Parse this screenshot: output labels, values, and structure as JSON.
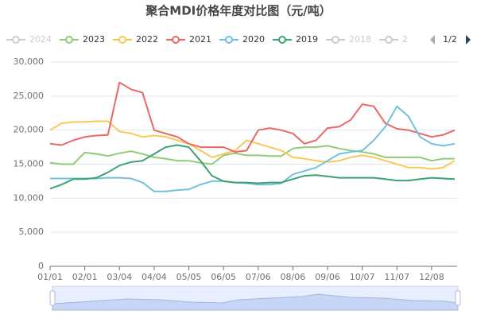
{
  "chart_data": {
    "type": "line",
    "title": "聚合MDI价格年度对比图（元/吨）",
    "categories": [
      "01/01",
      null,
      null,
      "02/01",
      null,
      null,
      "03/04",
      null,
      null,
      "04/04",
      null,
      null,
      "05/05",
      null,
      null,
      "06/05",
      null,
      null,
      "07/06",
      null,
      null,
      "08/06",
      null,
      null,
      "09/06",
      null,
      null,
      "10/07",
      null,
      null,
      "11/07",
      null,
      null,
      "12/08",
      null,
      null
    ],
    "ylim": [
      0,
      30000
    ],
    "yticks": [
      0,
      {
        "value": 5000,
        "label": "5,000"
      },
      {
        "value": 10000,
        "label": "10,000"
      },
      {
        "value": 15000,
        "label": "15,000"
      },
      {
        "value": 20000,
        "label": "20,000"
      },
      {
        "value": 25000,
        "label": "25,000"
      },
      {
        "value": 30000,
        "label": "30,000"
      }
    ],
    "grid": true,
    "legend_hidden": [
      "2024",
      "2018",
      "2"
    ],
    "legend_page": "1/2",
    "series": [
      {
        "name": "2023",
        "color": "#91cc75",
        "values": [
          15200,
          15000,
          15000,
          16700,
          16500,
          16200,
          16600,
          16900,
          16500,
          16000,
          15800,
          15500,
          15500,
          15200,
          15000,
          16300,
          16600,
          16300,
          16300,
          16200,
          16200,
          17300,
          17500,
          17500,
          17700,
          17300,
          17000,
          16800,
          16500,
          16000,
          16000,
          16000,
          16000,
          15500,
          15800,
          15800
        ]
      },
      {
        "name": "2022",
        "color": "#fac858",
        "values": [
          20000,
          21000,
          21200,
          21200,
          21300,
          21300,
          19800,
          19500,
          19000,
          19200,
          19000,
          18500,
          18000,
          17000,
          16000,
          16500,
          17000,
          18500,
          18000,
          17500,
          17000,
          16000,
          15800,
          15500,
          15300,
          15500,
          16000,
          16300,
          16000,
          15500,
          15000,
          14500,
          14500,
          14300,
          14500,
          15500
        ]
      },
      {
        "name": "2021",
        "color": "#ee6666",
        "values": [
          18000,
          17800,
          18500,
          19000,
          19200,
          19300,
          27000,
          26000,
          25500,
          20000,
          19500,
          19000,
          18000,
          17500,
          17500,
          17500,
          16800,
          17000,
          20000,
          20300,
          20000,
          19500,
          18000,
          18500,
          20300,
          20500,
          21500,
          23800,
          23500,
          21000,
          20200,
          20000,
          19500,
          19000,
          19300,
          20000
        ]
      },
      {
        "name": "2020",
        "color": "#73c0de",
        "values": [
          12900,
          12900,
          12900,
          12900,
          12900,
          13000,
          13000,
          12900,
          12300,
          11000,
          11000,
          11200,
          11300,
          12000,
          12500,
          12500,
          12300,
          12200,
          12000,
          12000,
          12200,
          13500,
          14000,
          14500,
          15500,
          16500,
          16800,
          17000,
          18500,
          20500,
          23500,
          22000,
          19000,
          18000,
          17700,
          18000
        ]
      },
      {
        "name": "2019",
        "color": "#3ba272",
        "values": [
          11400,
          12000,
          12800,
          12800,
          13000,
          13800,
          14800,
          15300,
          15500,
          16500,
          17500,
          17800,
          17500,
          15500,
          13300,
          12500,
          12300,
          12300,
          12200,
          12300,
          12300,
          12800,
          13300,
          13400,
          13200,
          13000,
          13000,
          13000,
          13000,
          12800,
          12600,
          12600,
          12800,
          13000,
          12900,
          12800
        ]
      }
    ]
  }
}
